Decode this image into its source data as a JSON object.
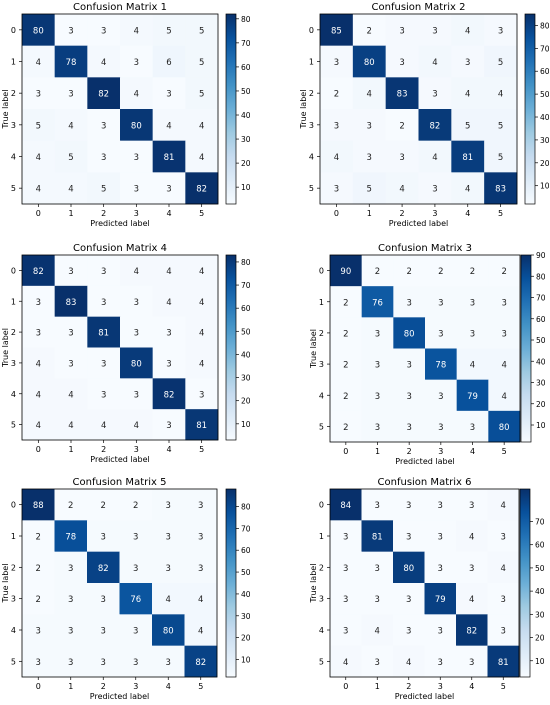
{
  "chart_data": [
    {
      "type": "heatmap",
      "title": "Confusion Matrix 1",
      "xlabel": "Predicted label",
      "ylabel": "True label",
      "x_categories": [
        "0",
        "1",
        "2",
        "3",
        "4",
        "5"
      ],
      "y_categories": [
        "0",
        "1",
        "2",
        "3",
        "4",
        "5"
      ],
      "values": [
        [
          80,
          3,
          3,
          4,
          5,
          5
        ],
        [
          4,
          78,
          4,
          3,
          6,
          5
        ],
        [
          3,
          3,
          82,
          4,
          3,
          5
        ],
        [
          5,
          4,
          3,
          80,
          4,
          4
        ],
        [
          4,
          5,
          3,
          3,
          81,
          4
        ],
        [
          4,
          4,
          5,
          3,
          3,
          82
        ]
      ],
      "colorbar_ticks": [
        10,
        20,
        30,
        40,
        50,
        60,
        70,
        80
      ],
      "colorbar_range": [
        3,
        82
      ],
      "colormap": "Blues"
    },
    {
      "type": "heatmap",
      "title": "Confusion Matrix 2",
      "xlabel": "Predicted label",
      "ylabel": "True label",
      "x_categories": [
        "0",
        "1",
        "2",
        "3",
        "4",
        "5"
      ],
      "y_categories": [
        "0",
        "1",
        "2",
        "3",
        "4",
        "5"
      ],
      "values": [
        [
          85,
          2,
          3,
          3,
          4,
          3
        ],
        [
          3,
          80,
          3,
          4,
          3,
          5
        ],
        [
          2,
          4,
          83,
          3,
          4,
          4
        ],
        [
          3,
          3,
          2,
          82,
          5,
          5
        ],
        [
          4,
          3,
          3,
          4,
          81,
          5
        ],
        [
          3,
          5,
          4,
          3,
          4,
          83
        ]
      ],
      "colorbar_ticks": [
        10,
        20,
        30,
        40,
        50,
        60,
        70,
        80
      ],
      "colorbar_range": [
        2,
        85
      ],
      "colormap": "Blues"
    },
    {
      "type": "heatmap",
      "title": "Confusion Matrix 4",
      "xlabel": "Predicted label",
      "ylabel": "True label",
      "x_categories": [
        "0",
        "1",
        "2",
        "3",
        "4",
        "5"
      ],
      "y_categories": [
        "0",
        "1",
        "2",
        "3",
        "4",
        "5"
      ],
      "values": [
        [
          82,
          3,
          3,
          4,
          4,
          4
        ],
        [
          3,
          83,
          3,
          3,
          4,
          4
        ],
        [
          3,
          3,
          81,
          3,
          3,
          4
        ],
        [
          4,
          3,
          3,
          80,
          3,
          4
        ],
        [
          4,
          4,
          3,
          3,
          82,
          3
        ],
        [
          4,
          4,
          4,
          4,
          3,
          81
        ]
      ],
      "colorbar_ticks": [
        10,
        20,
        30,
        40,
        50,
        60,
        70,
        80
      ],
      "colorbar_range": [
        3,
        83
      ],
      "colormap": "Blues"
    },
    {
      "type": "heatmap",
      "title": "Confusion Matrix 3",
      "xlabel": "Predicted label",
      "ylabel": "True label",
      "x_categories": [
        "0",
        "1",
        "2",
        "3",
        "4",
        "5"
      ],
      "y_categories": [
        "0",
        "1",
        "2",
        "3",
        "4",
        "5"
      ],
      "values": [
        [
          90,
          2,
          2,
          2,
          2,
          2
        ],
        [
          2,
          76,
          3,
          3,
          3,
          3
        ],
        [
          2,
          3,
          80,
          3,
          3,
          3
        ],
        [
          2,
          3,
          3,
          78,
          4,
          4
        ],
        [
          2,
          3,
          3,
          3,
          79,
          4
        ],
        [
          2,
          3,
          3,
          3,
          3,
          80
        ]
      ],
      "colorbar_ticks": [
        10,
        20,
        30,
        40,
        50,
        60,
        70,
        80,
        90
      ],
      "colorbar_range": [
        2,
        90
      ],
      "colormap": "Blues"
    },
    {
      "type": "heatmap",
      "title": "Confusion Matrix 5",
      "xlabel": "Predicted label",
      "ylabel": "True label",
      "x_categories": [
        "0",
        "1",
        "2",
        "3",
        "4",
        "5"
      ],
      "y_categories": [
        "0",
        "1",
        "2",
        "3",
        "4",
        "5"
      ],
      "values": [
        [
          88,
          2,
          2,
          2,
          3,
          3
        ],
        [
          2,
          78,
          3,
          3,
          3,
          3
        ],
        [
          2,
          3,
          82,
          3,
          3,
          3
        ],
        [
          2,
          3,
          3,
          76,
          4,
          4
        ],
        [
          3,
          3,
          3,
          3,
          80,
          4
        ],
        [
          3,
          3,
          3,
          3,
          3,
          82
        ]
      ],
      "colorbar_ticks": [
        10,
        20,
        30,
        40,
        50,
        60,
        70,
        80
      ],
      "colorbar_range": [
        2,
        88
      ],
      "colormap": "Blues"
    },
    {
      "type": "heatmap",
      "title": "Confusion Matrix 6",
      "xlabel": "Predicted label",
      "ylabel": "True label",
      "x_categories": [
        "0",
        "1",
        "2",
        "3",
        "4",
        "5"
      ],
      "y_categories": [
        "0",
        "1",
        "2",
        "3",
        "4",
        "5"
      ],
      "values": [
        [
          84,
          3,
          3,
          3,
          3,
          4
        ],
        [
          3,
          81,
          3,
          3,
          4,
          3
        ],
        [
          3,
          3,
          80,
          3,
          3,
          4
        ],
        [
          3,
          3,
          3,
          79,
          4,
          3
        ],
        [
          3,
          4,
          3,
          3,
          82,
          3
        ],
        [
          4,
          3,
          4,
          3,
          3,
          81
        ]
      ],
      "colorbar_ticks": [
        10,
        20,
        30,
        40,
        50,
        60,
        70
      ],
      "colorbar_range": [
        3,
        84
      ],
      "colormap": "Blues"
    }
  ]
}
